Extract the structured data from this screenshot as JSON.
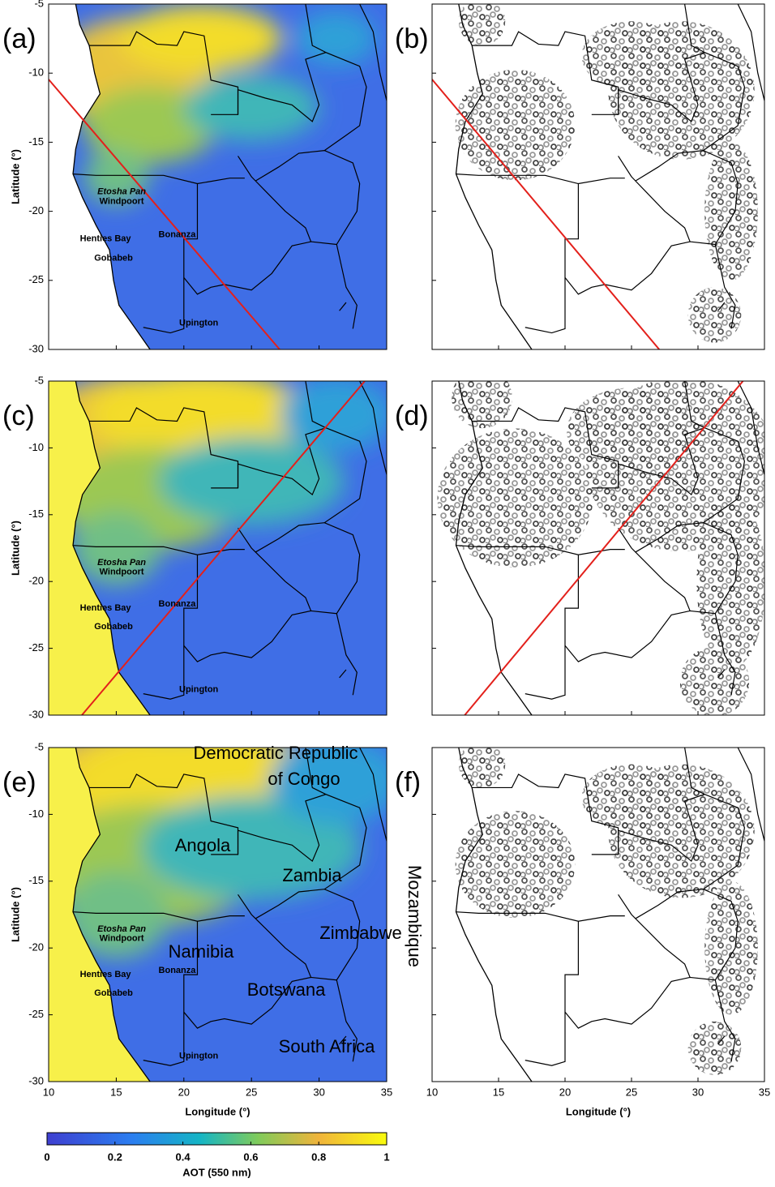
{
  "panels": [
    {
      "label": "(a)"
    },
    {
      "label": "(b)"
    },
    {
      "label": "(c)"
    },
    {
      "label": "(d)"
    },
    {
      "label": "(e)"
    },
    {
      "label": "(f)"
    }
  ],
  "axes": {
    "xlim": [
      10,
      35
    ],
    "ylim": [
      -30,
      -5
    ],
    "xticks": [
      10,
      15,
      20,
      25,
      30,
      35
    ],
    "yticks": [
      -30,
      -25,
      -20,
      -15,
      -10,
      -5
    ],
    "xlabel": "Longitude (°)",
    "ylabel": "Latitude (°)"
  },
  "places": [
    "Etosha Pan",
    "Windpoort",
    "Henties Bay",
    "Gobabeb",
    "Bonanza",
    "Upington"
  ],
  "country_labels": [
    [
      "Democratic Republic",
      "of Congo"
    ],
    [
      "Angola"
    ],
    [
      "Zambia"
    ],
    [
      "Zimbabwe"
    ],
    [
      "Namibia"
    ],
    [
      "Botswana"
    ],
    [
      "South Africa"
    ],
    [
      "Mozambique"
    ]
  ],
  "colorbar": {
    "label": "AOT (550 nm)",
    "lim": [
      0,
      1
    ],
    "ticks": [
      0,
      0.2,
      0.4,
      0.6,
      0.8,
      1
    ]
  }
}
